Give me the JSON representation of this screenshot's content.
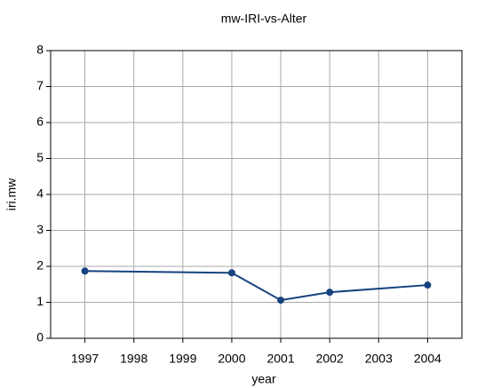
{
  "chart_data": {
    "type": "line",
    "title": "mw-IRI-vs-Alter",
    "x_label": "year",
    "y_label": "iri.mw",
    "x": [
      1997,
      2000,
      2001,
      2002,
      2004
    ],
    "series": [
      {
        "name": "iri.mw",
        "color": "#17427f",
        "values": [
          1.87,
          1.82,
          1.06,
          1.28,
          1.48
        ]
      }
    ],
    "xlim": [
      1996.3,
      2004.7
    ],
    "xticks": [
      1997,
      1998,
      1999,
      2000,
      2001,
      2002,
      2003,
      2004
    ],
    "ylim": [
      0,
      8
    ],
    "yticks": [
      0,
      1,
      2,
      3,
      4,
      5,
      6,
      7,
      8
    ],
    "grid": true
  }
}
